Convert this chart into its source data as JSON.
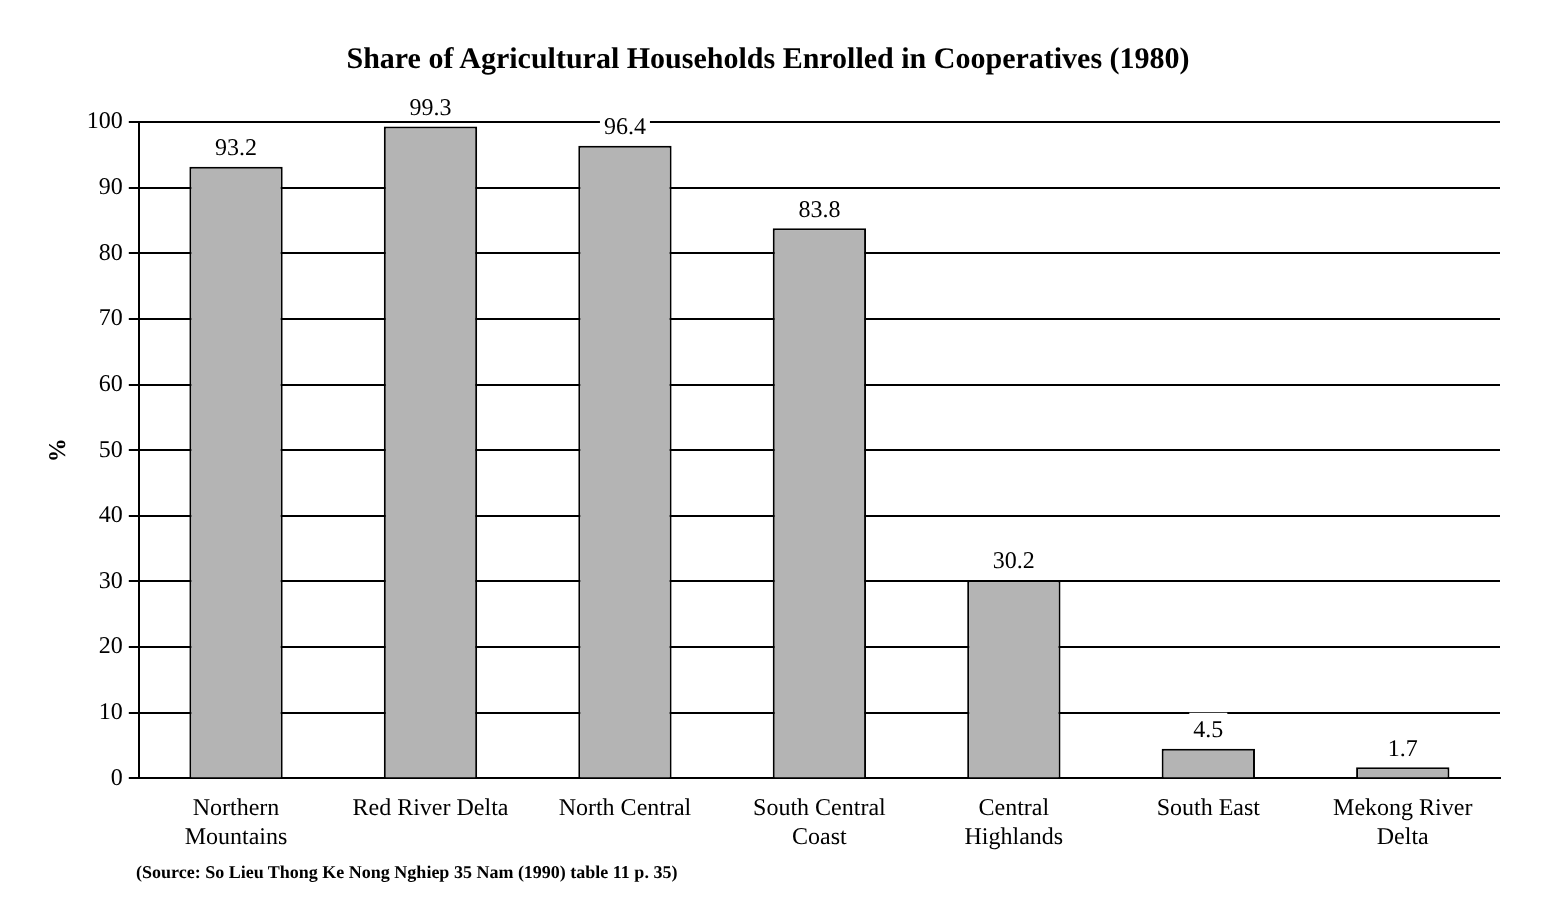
{
  "chart_data": {
    "type": "bar",
    "title": "Share of Agricultural Households Enrolled in Cooperatives (1980)",
    "ylabel": "%",
    "categories": [
      "Northern Mountains",
      "Red River Delta",
      "North Central",
      "South Central Coast",
      "Central Highlands",
      "South East",
      "Mekong River Delta"
    ],
    "values": [
      93.2,
      99.3,
      96.4,
      83.8,
      30.2,
      4.5,
      1.7
    ],
    "color": "#b4b4b4",
    "ylim": [
      0,
      100
    ],
    "yticks": [
      0,
      10,
      20,
      30,
      40,
      50,
      60,
      70,
      80,
      90,
      100
    ],
    "grid": "y",
    "data_labels": true,
    "legend": false,
    "annotations": [
      "(Source: So Lieu Thong Ke Nong Nghiep 35 Nam (1990) table 11 p. 35)"
    ]
  }
}
